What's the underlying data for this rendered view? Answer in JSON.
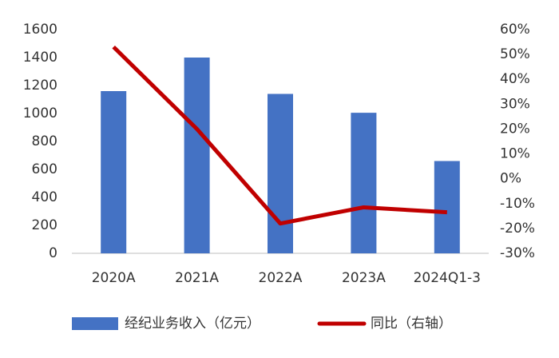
{
  "chart_data": {
    "type": "bar",
    "categories": [
      "2020A",
      "2021A",
      "2022A",
      "2023A",
      "2024Q1-3"
    ],
    "series": [
      {
        "name": "经纪业务收入（亿元）",
        "type": "bar",
        "color": "#4472c4",
        "values": [
          1160,
          1400,
          1140,
          1005,
          660
        ]
      },
      {
        "name": "同比（右轴）",
        "type": "line",
        "axis": "y2",
        "color": "#c00000",
        "values": [
          53,
          20,
          -18,
          -11.5,
          -13.5
        ]
      }
    ],
    "ylim": [
      0,
      1600
    ],
    "yticks": [
      0,
      200,
      400,
      600,
      800,
      1000,
      1200,
      1400,
      1600
    ],
    "y2lim": [
      -30,
      60
    ],
    "y2ticks": [
      {
        "value": -30,
        "label": "-30%"
      },
      {
        "value": -20,
        "label": "-20%"
      },
      {
        "value": -10,
        "label": "-10%"
      },
      {
        "value": 0,
        "label": "0%"
      },
      {
        "value": 10,
        "label": "10%"
      },
      {
        "value": 20,
        "label": "20%"
      },
      {
        "value": 30,
        "label": "30%"
      },
      {
        "value": 40,
        "label": "40%"
      },
      {
        "value": 50,
        "label": "50%"
      },
      {
        "value": 60,
        "label": "60%"
      }
    ],
    "legend": "bottom",
    "grid": false
  }
}
